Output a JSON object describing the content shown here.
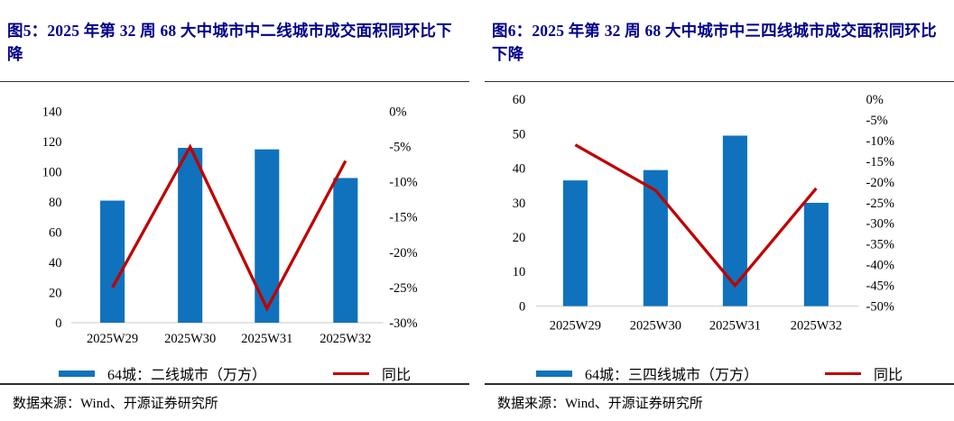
{
  "colors": {
    "bar": "#1072BC",
    "line": "#C00000",
    "title": "#00008B",
    "baseline": "#D8D8D8",
    "rule": "#2E2E2E"
  },
  "charts": [
    {
      "title": "图5：2025 年第 32 周 68 大中城市中二线城市成交面积同环比下降",
      "legend_bar_label": "64城：二线城市（万方）",
      "legend_line_label": "同比",
      "source": "数据来源：Wind、开源证券研究所",
      "chart_data": {
        "type": "bar+line",
        "categories": [
          "2025W29",
          "2025W30",
          "2025W31",
          "2025W32"
        ],
        "series": [
          {
            "name": "64城：二线城市（万方）",
            "type": "bar",
            "axis": "left",
            "values": [
              81,
              116,
              115,
              96
            ]
          },
          {
            "name": "同比",
            "type": "line",
            "axis": "right",
            "unit": "%",
            "values": [
              -25,
              -5,
              -28,
              -7
            ]
          }
        ],
        "left_axis": {
          "min": 0,
          "max": 140,
          "step": 20
        },
        "right_axis": {
          "min": -30,
          "max": 0,
          "step": 5,
          "format": "percent"
        },
        "grid": false,
        "legend_position": "bottom"
      }
    },
    {
      "title": "图6：2025 年第 32 周 68 大中城市中三四线城市成交面积同环比下降",
      "legend_bar_label": "64城：三四线城市（万方）",
      "legend_line_label": "同比",
      "source": "数据来源：Wind、开源证券研究所",
      "chart_data": {
        "type": "bar+line",
        "categories": [
          "2025W29",
          "2025W30",
          "2025W31",
          "2025W32"
        ],
        "series": [
          {
            "name": "64城：三四线城市（万方）",
            "type": "bar",
            "axis": "left",
            "values": [
              36.5,
              39.5,
              49.5,
              30
            ]
          },
          {
            "name": "同比",
            "type": "line",
            "axis": "right",
            "unit": "%",
            "values": [
              -11,
              -22,
              -45,
              -21.5
            ]
          }
        ],
        "left_axis": {
          "min": 0,
          "max": 60,
          "step": 10
        },
        "right_axis": {
          "min": -50,
          "max": 0,
          "step": 5,
          "format": "percent"
        },
        "grid": false,
        "legend_position": "bottom"
      }
    }
  ]
}
